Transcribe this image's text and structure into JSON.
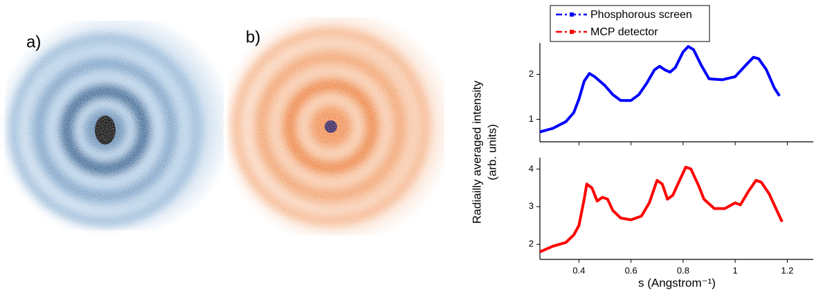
{
  "images": [
    {
      "label": "a)"
    },
    {
      "label": "b)"
    }
  ],
  "chart_data": [
    {
      "type": "line",
      "ylabel": [
        "Radiailly averaged intensity",
        "(arb. units)"
      ],
      "x": [
        0.25,
        0.3,
        0.35,
        0.38,
        0.4,
        0.42,
        0.44,
        0.46,
        0.48,
        0.5,
        0.53,
        0.56,
        0.6,
        0.63,
        0.66,
        0.69,
        0.71,
        0.73,
        0.75,
        0.77,
        0.8,
        0.82,
        0.84,
        0.87,
        0.9,
        0.95,
        1.0,
        1.04,
        1.07,
        1.09,
        1.12,
        1.15,
        1.17
      ],
      "series": [
        {
          "name": "Phosphorous screen",
          "color": "#0000ff",
          "values": [
            0.72,
            0.8,
            0.95,
            1.15,
            1.45,
            1.85,
            2.02,
            1.95,
            1.85,
            1.75,
            1.55,
            1.42,
            1.42,
            1.55,
            1.8,
            2.1,
            2.18,
            2.1,
            2.05,
            2.15,
            2.5,
            2.62,
            2.55,
            2.2,
            1.9,
            1.88,
            1.95,
            2.2,
            2.38,
            2.35,
            2.1,
            1.7,
            1.52
          ]
        }
      ],
      "xlim": [
        0.25,
        1.3
      ],
      "ylim": [
        0.5,
        2.7
      ],
      "yticks": [
        1,
        2
      ]
    },
    {
      "type": "line",
      "xlabel": "s (Angstrom⁻¹)",
      "x": [
        0.25,
        0.3,
        0.35,
        0.38,
        0.4,
        0.42,
        0.43,
        0.45,
        0.47,
        0.49,
        0.51,
        0.53,
        0.56,
        0.6,
        0.64,
        0.67,
        0.7,
        0.72,
        0.74,
        0.76,
        0.78,
        0.81,
        0.83,
        0.86,
        0.88,
        0.92,
        0.96,
        1.0,
        1.02,
        1.05,
        1.08,
        1.1,
        1.13,
        1.16,
        1.18
      ],
      "series": [
        {
          "name": "MCP detector",
          "color": "#ff0000",
          "values": [
            1.8,
            1.95,
            2.05,
            2.25,
            2.5,
            3.2,
            3.6,
            3.5,
            3.15,
            3.25,
            3.2,
            2.9,
            2.7,
            2.65,
            2.75,
            3.1,
            3.7,
            3.6,
            3.2,
            3.3,
            3.6,
            4.05,
            4.0,
            3.55,
            3.2,
            2.95,
            2.95,
            3.1,
            3.05,
            3.4,
            3.7,
            3.65,
            3.35,
            2.9,
            2.6
          ]
        }
      ],
      "xlim": [
        0.25,
        1.3
      ],
      "ylim": [
        1.6,
        4.3
      ],
      "xticks": [
        0.4,
        0.6,
        0.8,
        1.0,
        1.2
      ],
      "yticks": [
        2,
        3,
        4
      ]
    }
  ]
}
